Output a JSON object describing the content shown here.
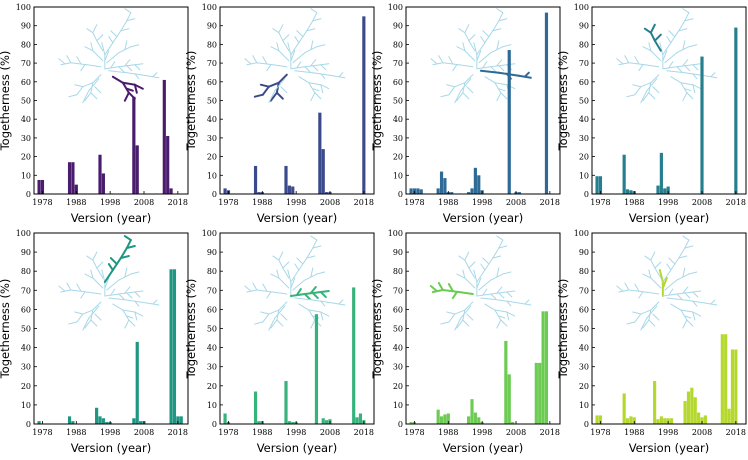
{
  "figure": {
    "background": "#ffffff",
    "tree_color": "#a8d8e8",
    "xlabel": "Version (year)",
    "ylabel": "Togetherness (%)"
  },
  "chart_data": [
    {
      "type": "bar",
      "panel": "r0-c0",
      "color": "#4a1c6e",
      "xlabel": "Version (year)",
      "ylabel": "Togetherness (%)",
      "ylim": [
        0,
        100
      ],
      "xlim": [
        1975.5,
        2021
      ],
      "yticks": [
        0,
        10,
        20,
        30,
        40,
        50,
        60,
        70,
        80,
        90,
        100
      ],
      "xticks": [
        1978,
        1988,
        1998,
        2008,
        2018
      ],
      "x": [
        1977,
        1978,
        1986,
        1987,
        1988,
        1995,
        1996,
        2005,
        2006,
        2014,
        2015,
        2016
      ],
      "values": [
        7.5,
        7.5,
        17,
        17,
        5,
        21,
        11,
        52,
        26,
        61,
        31,
        3
      ],
      "inset_highlight": "lower-right-branch"
    },
    {
      "type": "bar",
      "panel": "r0-c1",
      "color": "#3b4a8c",
      "xlabel": "Version (year)",
      "ylabel": "Togetherness (%)",
      "ylim": [
        0,
        100
      ],
      "xlim": [
        1975.5,
        2021
      ],
      "yticks": [
        0,
        10,
        20,
        30,
        40,
        50,
        60,
        70,
        80,
        90,
        100
      ],
      "xticks": [
        1978,
        1988,
        1998,
        2008,
        2018
      ],
      "x": [
        1977,
        1978,
        1986,
        1987,
        1988,
        1995,
        1996,
        1997,
        2005,
        2006,
        2007,
        2008,
        2018
      ],
      "values": [
        3,
        2,
        15,
        1,
        1,
        15,
        4.5,
        4,
        43.5,
        24,
        1,
        1,
        95
      ],
      "inset_highlight": "lower-left-branch"
    },
    {
      "type": "bar",
      "panel": "r0-c2",
      "color": "#2d6a96",
      "xlabel": "Version (year)",
      "ylabel": "Togetherness (%)",
      "ylim": [
        0,
        100
      ],
      "xlim": [
        1975.5,
        2021
      ],
      "yticks": [
        0,
        10,
        20,
        30,
        40,
        50,
        60,
        70,
        80,
        90,
        100
      ],
      "xticks": [
        1978,
        1988,
        1998,
        2008,
        2018
      ],
      "x": [
        1977,
        1978,
        1979,
        1980,
        1985,
        1986,
        1987,
        1988,
        1989,
        1994,
        1995,
        1996,
        1997,
        1998,
        2006,
        2008,
        2009,
        2017
      ],
      "values": [
        3,
        3,
        3,
        2.5,
        3,
        12,
        8.5,
        1,
        1,
        1,
        3,
        14,
        10,
        2,
        77,
        1,
        1,
        97
      ],
      "inset_highlight": "center-right-branch"
    },
    {
      "type": "bar",
      "panel": "r0-c3",
      "color": "#267e8e",
      "xlabel": "Version (year)",
      "ylabel": "Togetherness (%)",
      "ylim": [
        0,
        100
      ],
      "xlim": [
        1975.5,
        2021
      ],
      "yticks": [
        0,
        10,
        20,
        30,
        40,
        50,
        60,
        70,
        80,
        90,
        100
      ],
      "xticks": [
        1978,
        1988,
        1998,
        2008,
        2018
      ],
      "x": [
        1977,
        1978,
        1985,
        1986,
        1987,
        1988,
        1995,
        1996,
        1997,
        1998,
        2008,
        2018
      ],
      "values": [
        9.5,
        9.5,
        21,
        2.5,
        2,
        1.5,
        4.5,
        22,
        3,
        4,
        73.5,
        89
      ],
      "inset_highlight": "top-center-branch"
    },
    {
      "type": "bar",
      "panel": "r1-c0",
      "color": "#1f9682",
      "xlabel": "Version (year)",
      "ylabel": "Togetherness (%)",
      "ylim": [
        0,
        100
      ],
      "xlim": [
        1975.5,
        2021
      ],
      "yticks": [
        0,
        10,
        20,
        30,
        40,
        50,
        60,
        70,
        80,
        90,
        100
      ],
      "xticks": [
        1978,
        1988,
        1998,
        2008,
        2018
      ],
      "x": [
        1977,
        1986,
        1987,
        1994,
        1995,
        1996,
        1997,
        1998,
        2005,
        2006,
        2007,
        2008,
        2016,
        2017,
        2018,
        2019
      ],
      "values": [
        1.5,
        4,
        1.5,
        8.5,
        4,
        3,
        1,
        1,
        3,
        43,
        1.5,
        1.5,
        81,
        81,
        4,
        4
      ],
      "inset_highlight": "top-branch"
    },
    {
      "type": "bar",
      "panel": "r1-c1",
      "color": "#35b37a",
      "xlabel": "Version (year)",
      "ylabel": "Togetherness (%)",
      "ylim": [
        0,
        100
      ],
      "xlim": [
        1975.5,
        2021
      ],
      "yticks": [
        0,
        10,
        20,
        30,
        40,
        50,
        60,
        70,
        80,
        90,
        100
      ],
      "xticks": [
        1978,
        1988,
        1998,
        2008,
        2018
      ],
      "x": [
        1977,
        1978,
        1986,
        1987,
        1988,
        1995,
        1996,
        1997,
        1998,
        2004,
        2006,
        2007,
        2008,
        2015,
        2016,
        2017,
        2018
      ],
      "values": [
        5.5,
        1,
        17,
        1.5,
        1.5,
        22.5,
        1.5,
        1,
        1,
        57.5,
        3,
        2,
        2.5,
        71.5,
        3.5,
        5.5,
        2
      ],
      "inset_highlight": "center-branch"
    },
    {
      "type": "bar",
      "panel": "r1-c2",
      "color": "#6ccb52",
      "xlabel": "Version (year)",
      "ylabel": "Togetherness (%)",
      "ylim": [
        0,
        100
      ],
      "xlim": [
        1975.5,
        2021
      ],
      "yticks": [
        0,
        10,
        20,
        30,
        40,
        50,
        60,
        70,
        80,
        90,
        100
      ],
      "xticks": [
        1978,
        1988,
        1998,
        2008,
        2018
      ],
      "x": [
        1977,
        1978,
        1985,
        1986,
        1987,
        1988,
        1994,
        1995,
        1996,
        1997,
        1998,
        2005,
        2006,
        2007,
        2014,
        2015,
        2016,
        2017
      ],
      "values": [
        1,
        1,
        7.5,
        4,
        5,
        5.5,
        4,
        13,
        6,
        3.5,
        1,
        43.5,
        26,
        1,
        32,
        32,
        59,
        59
      ],
      "inset_highlight": "upper-left-branch"
    },
    {
      "type": "bar",
      "panel": "r1-c3",
      "color": "#b5d82e",
      "xlabel": "Version (year)",
      "ylabel": "Togetherness (%)",
      "ylim": [
        0,
        100
      ],
      "xlim": [
        1975.5,
        2021
      ],
      "yticks": [
        0,
        10,
        20,
        30,
        40,
        50,
        60,
        70,
        80,
        90,
        100
      ],
      "xticks": [
        1978,
        1988,
        1998,
        2008,
        2018
      ],
      "x": [
        1977,
        1978,
        1985,
        1986,
        1987,
        1988,
        1994,
        1995,
        1996,
        1997,
        1998,
        1999,
        2003,
        2004,
        2005,
        2006,
        2007,
        2008,
        2009,
        2014,
        2015,
        2016,
        2017,
        2018
      ],
      "values": [
        4.5,
        4.5,
        16,
        3,
        4,
        3.5,
        22.5,
        2.5,
        4,
        3,
        3,
        3,
        12,
        17,
        19,
        14,
        6,
        3.5,
        4.5,
        47,
        47,
        8,
        39,
        39
      ],
      "inset_highlight": "trunk"
    }
  ]
}
